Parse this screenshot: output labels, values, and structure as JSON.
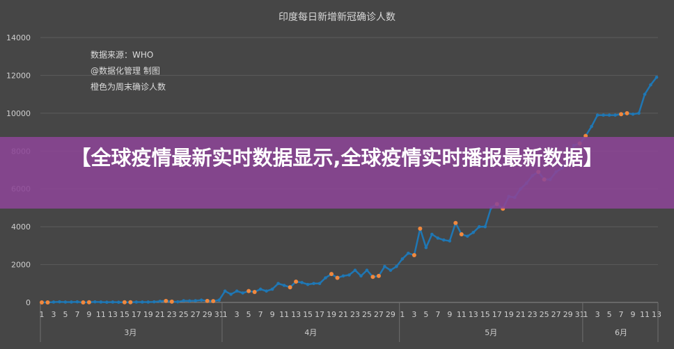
{
  "banner": {
    "text": "【全球疫情最新实时数据显示,全球疫情实时播报最新数据】"
  },
  "chart_data": {
    "type": "line",
    "title": "印度每日新增新冠确诊人数",
    "notes": [
      "数据来源：WHO",
      "@数据化管理  制图",
      "橙色为周末确诊人数"
    ],
    "ylim": [
      0,
      14000
    ],
    "yticks": [
      0,
      2000,
      4000,
      6000,
      8000,
      10000,
      12000,
      14000
    ],
    "grid": true,
    "colors": {
      "line": "#1f77b4",
      "weekend": "#f0883e",
      "grid": "#5c5c5c",
      "text": "#cfcfcf"
    },
    "months": [
      {
        "label": "3月",
        "days": 31
      },
      {
        "label": "4月",
        "days": 30
      },
      {
        "label": "5月",
        "days": 31
      },
      {
        "label": "6月",
        "days": 13
      }
    ],
    "tick_step": 2,
    "values": [
      0,
      0,
      20,
      30,
      20,
      20,
      30,
      0,
      10,
      30,
      20,
      10,
      20,
      10,
      10,
      10,
      20,
      20,
      20,
      30,
      60,
      80,
      40,
      30,
      90,
      80,
      90,
      120,
      80,
      70,
      120,
      600,
      430,
      600,
      500,
      600,
      550,
      700,
      600,
      700,
      1000,
      900,
      800,
      1100,
      1050,
      950,
      1000,
      1000,
      1300,
      1500,
      1300,
      1400,
      1450,
      1700,
      1400,
      1700,
      1350,
      1400,
      1900,
      1700,
      1900,
      2300,
      2600,
      2500,
      3900,
      2900,
      3600,
      3400,
      3300,
      3250,
      4200,
      3600,
      3500,
      3700,
      4000,
      4000,
      5000,
      5200,
      4950,
      5600,
      5550,
      6000,
      6300,
      6700,
      6900,
      6500,
      6500,
      6900,
      7100,
      7500,
      8300,
      8400,
      8800,
      9300,
      9900,
      9900,
      9900,
      9900,
      9950,
      10000,
      9950,
      10000,
      11000,
      11500,
      11900
    ],
    "weekend_indices": [
      0,
      1,
      7,
      8,
      14,
      15,
      21,
      22,
      28,
      29,
      35,
      36,
      42,
      43,
      49,
      50,
      56,
      57,
      63,
      64,
      70,
      71,
      77,
      78,
      84,
      85,
      91,
      92,
      98,
      99
    ]
  }
}
